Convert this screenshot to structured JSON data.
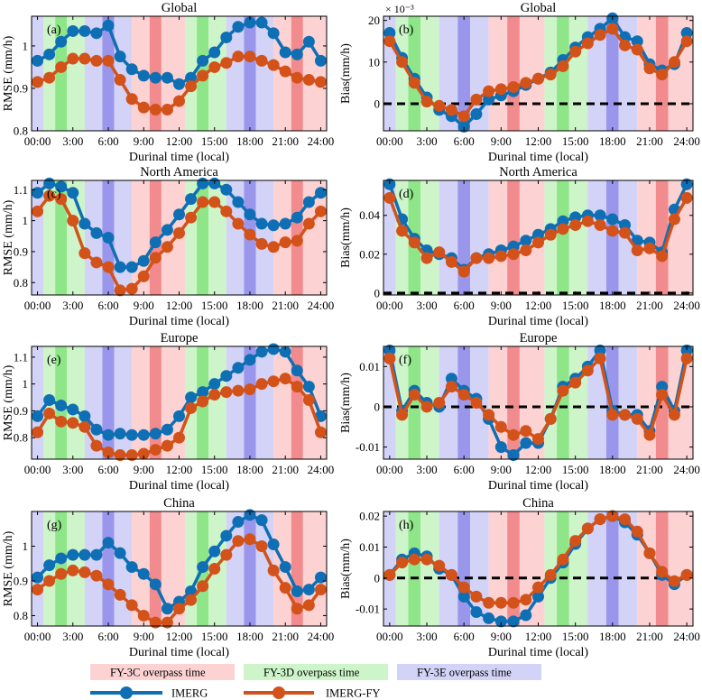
{
  "colors": {
    "imerg": "#0f6fb4",
    "imerg_fy": "#d2521a",
    "fy3c_light": "#fcd2d3",
    "fy3c_dark": "#f28b8e",
    "fy3d_light": "#cdf5c9",
    "fy3d_dark": "#8fe688",
    "fy3e_light": "#d3d2f7",
    "fy3e_dark": "#9a96ec"
  },
  "x_tick_labels": [
    "00:00",
    "3:00",
    "6:00",
    "9:00",
    "12:00",
    "15:00",
    "18:00",
    "21:00",
    "24:00"
  ],
  "x_label": "Durinal time  (local)",
  "legend": {
    "fy3c": "FY-3C overpass time",
    "fy3d": "FY-3D overpass time",
    "fy3e": "FY-3E overpass time",
    "imerg": "IMERG",
    "imerg_fy": "IMERG-FY"
  },
  "overpass_bands": [
    {
      "sat": "fy3e",
      "shade": "light",
      "start": -0.5,
      "end": 0.5
    },
    {
      "sat": "fy3d",
      "shade": "light",
      "start": 0.5,
      "end": 1.5
    },
    {
      "sat": "fy3d",
      "shade": "dark",
      "start": 1.5,
      "end": 2.5
    },
    {
      "sat": "fy3d",
      "shade": "light",
      "start": 2.5,
      "end": 4.0
    },
    {
      "sat": "fy3e",
      "shade": "light",
      "start": 4.0,
      "end": 5.5
    },
    {
      "sat": "fy3e",
      "shade": "dark",
      "start": 5.5,
      "end": 6.5
    },
    {
      "sat": "fy3e",
      "shade": "light",
      "start": 6.5,
      "end": 8.0
    },
    {
      "sat": "fy3c",
      "shade": "light",
      "start": 8.0,
      "end": 9.5
    },
    {
      "sat": "fy3c",
      "shade": "dark",
      "start": 9.5,
      "end": 10.5
    },
    {
      "sat": "fy3c",
      "shade": "light",
      "start": 10.5,
      "end": 12.5
    },
    {
      "sat": "fy3d",
      "shade": "light",
      "start": 12.5,
      "end": 13.5
    },
    {
      "sat": "fy3d",
      "shade": "dark",
      "start": 13.5,
      "end": 14.5
    },
    {
      "sat": "fy3d",
      "shade": "light",
      "start": 14.5,
      "end": 16.0
    },
    {
      "sat": "fy3e",
      "shade": "light",
      "start": 16.0,
      "end": 17.5
    },
    {
      "sat": "fy3e",
      "shade": "dark",
      "start": 17.5,
      "end": 18.5
    },
    {
      "sat": "fy3e",
      "shade": "light",
      "start": 18.5,
      "end": 20.0
    },
    {
      "sat": "fy3c",
      "shade": "light",
      "start": 20.0,
      "end": 21.5
    },
    {
      "sat": "fy3c",
      "shade": "dark",
      "start": 21.5,
      "end": 22.5
    },
    {
      "sat": "fy3c",
      "shade": "light",
      "start": 22.5,
      "end": 24.5
    }
  ],
  "chart_data": [
    {
      "id": "a",
      "type": "line",
      "title": "Global",
      "panel_label": "(a)",
      "ylabel": "RMSE (mm/h)",
      "ylim": [
        0.8,
        1.07
      ],
      "yticks": [
        0.8,
        0.9,
        1.0
      ],
      "ytick_labels": [
        "0.8",
        "0.9",
        "1"
      ],
      "exponent": "",
      "zero_line": false,
      "x": [
        0,
        1,
        2,
        3,
        4,
        5,
        6,
        7,
        8,
        9,
        10,
        11,
        12,
        13,
        14,
        15,
        16,
        17,
        18,
        19,
        20,
        21,
        22,
        23,
        24
      ],
      "series": [
        {
          "name": "IMERG",
          "values": [
            0.965,
            0.98,
            1.01,
            1.035,
            1.035,
            1.03,
            1.048,
            0.975,
            0.945,
            0.93,
            0.925,
            0.925,
            0.91,
            0.925,
            0.965,
            0.985,
            1.02,
            1.045,
            1.055,
            1.055,
            1.03,
            0.985,
            0.98,
            1.01,
            0.965
          ]
        },
        {
          "name": "IMERG-FY",
          "values": [
            0.915,
            0.925,
            0.95,
            0.97,
            0.97,
            0.965,
            0.965,
            0.92,
            0.875,
            0.855,
            0.85,
            0.85,
            0.87,
            0.905,
            0.93,
            0.95,
            0.96,
            0.975,
            0.975,
            0.965,
            0.955,
            0.94,
            0.925,
            0.92,
            0.915
          ]
        }
      ]
    },
    {
      "id": "b",
      "type": "line",
      "title": "Global",
      "panel_label": "(b)",
      "ylabel": "Bias(mm/h)",
      "ylim": [
        -6.5,
        21
      ],
      "yticks": [
        0,
        10,
        20
      ],
      "ytick_labels": [
        "0",
        "10",
        "20"
      ],
      "exponent": "× 10⁻³",
      "zero_line": true,
      "x": [
        0,
        1,
        2,
        3,
        4,
        5,
        6,
        7,
        8,
        9,
        10,
        11,
        12,
        13,
        14,
        15,
        16,
        17,
        18,
        19,
        20,
        21,
        22,
        23,
        24
      ],
      "series": [
        {
          "name": "IMERG",
          "values": [
            17,
            11,
            6,
            1.5,
            -1.5,
            -3,
            -5.5,
            -2.5,
            1,
            2,
            3,
            4.5,
            6,
            7.5,
            10.5,
            13.5,
            16,
            18,
            20.5,
            16,
            15,
            9.5,
            8,
            9.5,
            17
          ]
        },
        {
          "name": "IMERG-FY",
          "values": [
            15,
            10,
            5,
            0.5,
            -0.5,
            -1.5,
            -3,
            1,
            3,
            3.5,
            4,
            5,
            6,
            7,
            9,
            12.5,
            14.5,
            16.5,
            18,
            14,
            13,
            8.5,
            7,
            10,
            15
          ]
        }
      ]
    },
    {
      "id": "c",
      "type": "line",
      "title": "North America",
      "panel_label": "(c)",
      "ylabel": "RMSE (mm/h)",
      "ylim": [
        0.76,
        1.13
      ],
      "yticks": [
        0.8,
        0.9,
        1.0,
        1.1
      ],
      "ytick_labels": [
        "0.8",
        "0.9",
        "1",
        "1.1"
      ],
      "exponent": "",
      "zero_line": false,
      "x": [
        0,
        1,
        2,
        3,
        4,
        5,
        6,
        7,
        8,
        9,
        10,
        11,
        12,
        13,
        14,
        15,
        16,
        17,
        18,
        19,
        20,
        21,
        22,
        23,
        24
      ],
      "series": [
        {
          "name": "IMERG",
          "values": [
            1.09,
            1.12,
            1.11,
            1.09,
            0.99,
            0.96,
            0.945,
            0.85,
            0.85,
            0.87,
            0.93,
            0.97,
            1.02,
            1.07,
            1.12,
            1.12,
            1.1,
            1.06,
            1.02,
            0.99,
            0.985,
            0.99,
            1.01,
            1.06,
            1.09
          ]
        },
        {
          "name": "IMERG-FY",
          "values": [
            1.03,
            1.08,
            1.07,
            1.0,
            0.895,
            0.865,
            0.85,
            0.775,
            0.78,
            0.82,
            0.88,
            0.915,
            0.96,
            1.01,
            1.06,
            1.06,
            1.03,
            0.99,
            0.955,
            0.925,
            0.915,
            0.93,
            0.935,
            0.99,
            1.03
          ]
        }
      ]
    },
    {
      "id": "d",
      "type": "line",
      "title": "North America",
      "panel_label": "(d)",
      "ylabel": "Bias(mm/h)",
      "ylim": [
        -0.001,
        0.058
      ],
      "yticks": [
        0,
        0.02,
        0.04
      ],
      "ytick_labels": [
        "0",
        "0.02",
        "0.04"
      ],
      "exponent": "",
      "zero_line": true,
      "x": [
        0,
        1,
        2,
        3,
        4,
        5,
        6,
        7,
        8,
        9,
        10,
        11,
        12,
        13,
        14,
        15,
        16,
        17,
        18,
        19,
        20,
        21,
        22,
        23,
        24
      ],
      "series": [
        {
          "name": "IMERG",
          "values": [
            0.056,
            0.038,
            0.028,
            0.022,
            0.02,
            0.018,
            0.012,
            0.018,
            0.02,
            0.022,
            0.024,
            0.027,
            0.03,
            0.033,
            0.037,
            0.039,
            0.04,
            0.04,
            0.038,
            0.035,
            0.027,
            0.026,
            0.021,
            0.043,
            0.056
          ]
        },
        {
          "name": "IMERG-FY",
          "values": [
            0.049,
            0.032,
            0.026,
            0.018,
            0.021,
            0.016,
            0.011,
            0.018,
            0.018,
            0.019,
            0.02,
            0.022,
            0.026,
            0.03,
            0.033,
            0.035,
            0.037,
            0.035,
            0.032,
            0.031,
            0.022,
            0.023,
            0.019,
            0.038,
            0.049
          ]
        }
      ]
    },
    {
      "id": "e",
      "type": "line",
      "title": "Europe",
      "panel_label": "(e)",
      "ylabel": "RMSE (mm/h)",
      "ylim": [
        0.72,
        1.14
      ],
      "yticks": [
        0.8,
        0.9,
        1.0,
        1.1
      ],
      "ytick_labels": [
        "0.8",
        "0.9",
        "1",
        "1.1"
      ],
      "exponent": "",
      "zero_line": false,
      "x": [
        0,
        1,
        2,
        3,
        4,
        5,
        6,
        7,
        8,
        9,
        10,
        11,
        12,
        13,
        14,
        15,
        16,
        17,
        18,
        19,
        20,
        21,
        22,
        23,
        24
      ],
      "series": [
        {
          "name": "IMERG",
          "values": [
            0.88,
            0.94,
            0.92,
            0.905,
            0.88,
            0.83,
            0.81,
            0.815,
            0.81,
            0.81,
            0.815,
            0.83,
            0.88,
            0.95,
            0.97,
            1.0,
            1.03,
            1.06,
            1.09,
            1.12,
            1.13,
            1.12,
            1.05,
            0.99,
            0.88
          ]
        },
        {
          "name": "IMERG-FY",
          "values": [
            0.82,
            0.89,
            0.86,
            0.855,
            0.84,
            0.77,
            0.745,
            0.735,
            0.735,
            0.74,
            0.755,
            0.77,
            0.8,
            0.91,
            0.935,
            0.96,
            0.97,
            0.975,
            0.98,
            1.0,
            1.01,
            1.02,
            0.99,
            0.94,
            0.82
          ]
        }
      ]
    },
    {
      "id": "f",
      "type": "line",
      "title": "Europe",
      "panel_label": "(f)",
      "ylabel": "Bias(mm/h)",
      "ylim": [
        -0.013,
        0.015
      ],
      "yticks": [
        -0.01,
        0,
        0.01
      ],
      "ytick_labels": [
        "-0.01",
        "0",
        "0.01"
      ],
      "exponent": "",
      "zero_line": true,
      "x": [
        0,
        1,
        2,
        3,
        4,
        5,
        6,
        7,
        8,
        9,
        10,
        11,
        12,
        13,
        14,
        15,
        16,
        17,
        18,
        19,
        20,
        21,
        22,
        23,
        24
      ],
      "series": [
        {
          "name": "IMERG",
          "values": [
            0.014,
            -0.001,
            0.004,
            0.001,
            0.0,
            0.007,
            0.004,
            0.002,
            -0.003,
            -0.01,
            -0.012,
            -0.009,
            -0.009,
            -0.003,
            0.005,
            0.007,
            0.01,
            0.014,
            -0.001,
            -0.002,
            -0.002,
            -0.006,
            0.005,
            -0.001,
            0.014
          ]
        },
        {
          "name": "IMERG-FY",
          "values": [
            0.012,
            -0.002,
            0.003,
            0.0,
            0.001,
            0.005,
            0.003,
            0.001,
            -0.002,
            -0.005,
            -0.007,
            -0.006,
            -0.008,
            -0.003,
            0.004,
            0.006,
            0.009,
            0.012,
            -0.002,
            -0.002,
            -0.003,
            -0.007,
            0.003,
            -0.002,
            0.012
          ]
        }
      ]
    },
    {
      "id": "g",
      "type": "line",
      "title": "China",
      "panel_label": "(g)",
      "ylabel": "RMSE (mm/h)",
      "ylim": [
        0.77,
        1.1
      ],
      "yticks": [
        0.8,
        0.9,
        1.0
      ],
      "ytick_labels": [
        "0.8",
        "0.9",
        "1"
      ],
      "exponent": "",
      "zero_line": false,
      "x": [
        0,
        1,
        2,
        3,
        4,
        5,
        6,
        7,
        8,
        9,
        10,
        11,
        12,
        13,
        14,
        15,
        16,
        17,
        18,
        19,
        20,
        21,
        22,
        23,
        24
      ],
      "series": [
        {
          "name": "IMERG",
          "values": [
            0.91,
            0.945,
            0.965,
            0.975,
            0.975,
            0.975,
            1.01,
            0.98,
            0.94,
            0.92,
            0.89,
            0.82,
            0.84,
            0.87,
            0.94,
            0.985,
            1.03,
            1.07,
            1.09,
            1.075,
            1.005,
            0.94,
            0.87,
            0.875,
            0.91
          ]
        },
        {
          "name": "IMERG-FY",
          "values": [
            0.875,
            0.9,
            0.92,
            0.93,
            0.925,
            0.915,
            0.89,
            0.86,
            0.83,
            0.8,
            0.78,
            0.78,
            0.82,
            0.845,
            0.885,
            0.935,
            0.975,
            1.015,
            1.02,
            1.0,
            0.93,
            0.88,
            0.82,
            0.83,
            0.875
          ]
        }
      ]
    },
    {
      "id": "h",
      "type": "line",
      "title": "China",
      "panel_label": "(h)",
      "ylabel": "Bias(mm/h)",
      "ylim": [
        -0.0155,
        0.0215
      ],
      "yticks": [
        -0.01,
        0,
        0.01,
        0.02
      ],
      "ytick_labels": [
        "-0.01",
        "0",
        "0.01",
        "0.02"
      ],
      "exponent": "",
      "zero_line": true,
      "x": [
        0,
        1,
        2,
        3,
        4,
        5,
        6,
        7,
        8,
        9,
        10,
        11,
        12,
        13,
        14,
        15,
        16,
        17,
        18,
        19,
        20,
        21,
        22,
        23,
        24
      ],
      "series": [
        {
          "name": "IMERG",
          "values": [
            0.001,
            0.006,
            0.008,
            0.007,
            0.003,
            0.001,
            -0.006,
            -0.011,
            -0.013,
            -0.014,
            -0.014,
            -0.012,
            -0.006,
            0.0,
            0.005,
            0.011,
            0.016,
            0.019,
            0.02,
            0.018,
            0.014,
            0.008,
            0.001,
            -0.002,
            0.001
          ]
        },
        {
          "name": "IMERG-FY",
          "values": [
            0.001,
            0.005,
            0.006,
            0.006,
            0.004,
            0.001,
            -0.003,
            -0.006,
            -0.008,
            -0.008,
            -0.008,
            -0.007,
            -0.003,
            0.001,
            0.006,
            0.012,
            0.016,
            0.019,
            0.02,
            0.019,
            0.015,
            0.008,
            0.002,
            -0.001,
            0.001
          ]
        }
      ]
    }
  ]
}
